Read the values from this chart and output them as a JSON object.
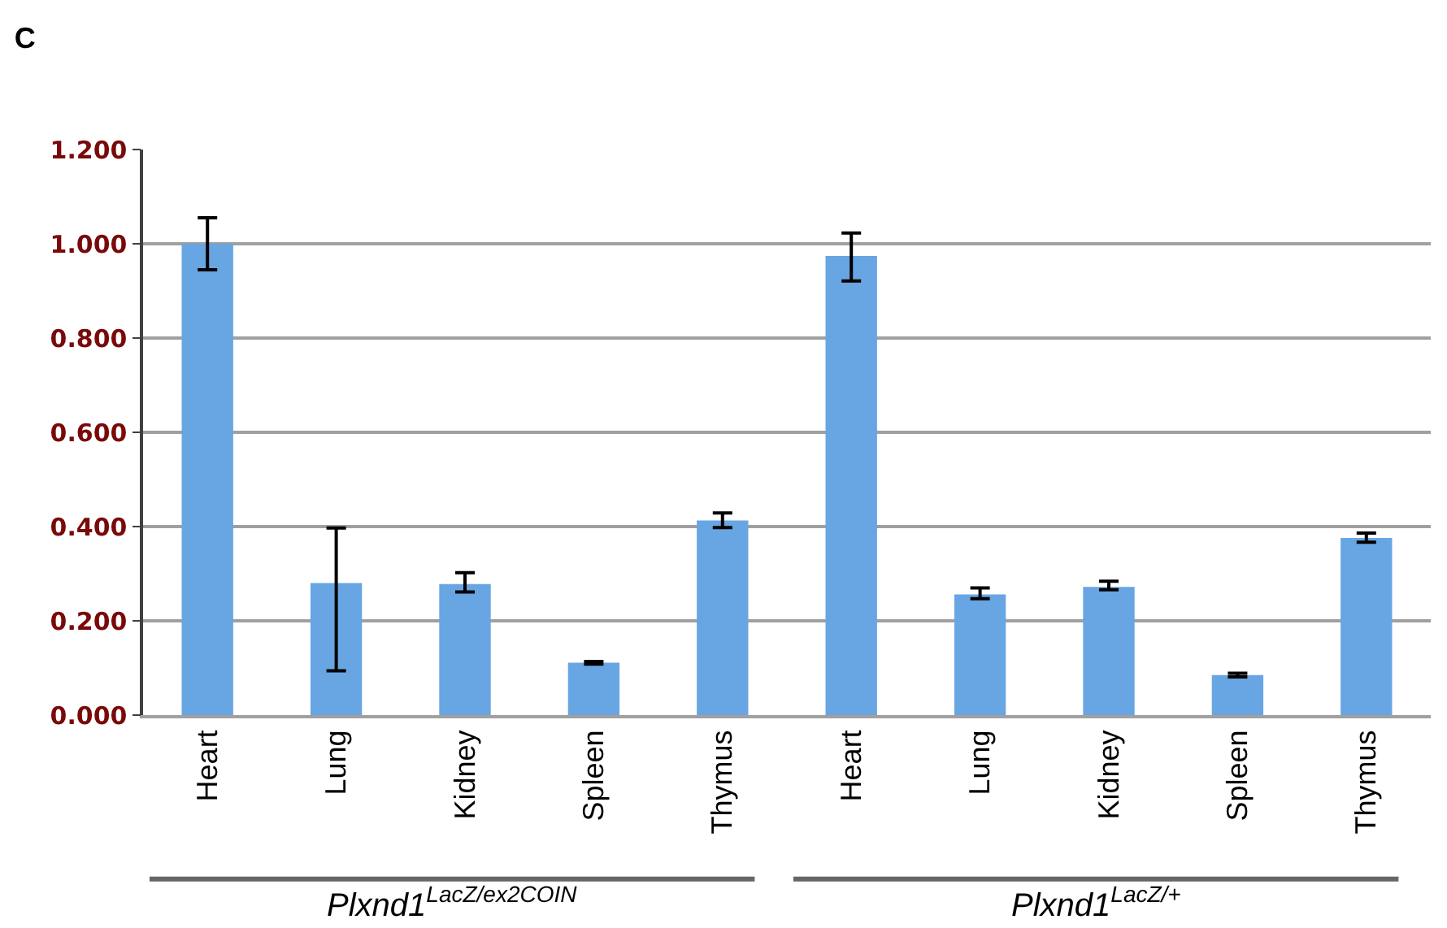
{
  "chart_data": {
    "type": "bar",
    "title": "C",
    "categories": [
      "Heart",
      "Lung",
      "Kidney",
      "Spleen",
      "Thymus",
      "Heart",
      "Lung",
      "Kidney",
      "Spleen",
      "Thymus"
    ],
    "values": [
      1.0,
      0.28,
      0.278,
      0.111,
      0.413,
      0.974,
      0.256,
      0.272,
      0.085,
      0.376
    ],
    "errors": [
      [
        0.945,
        1.055
      ],
      [
        0.094,
        0.397
      ],
      [
        0.261,
        0.302
      ],
      [
        0.108,
        0.114
      ],
      [
        0.398,
        0.429
      ],
      [
        0.921,
        1.023
      ],
      [
        0.247,
        0.27
      ],
      [
        0.266,
        0.284
      ],
      [
        0.081,
        0.089
      ],
      [
        0.367,
        0.386
      ]
    ],
    "color": "#68a5e3",
    "ylim": [
      0,
      1.2
    ],
    "yticks": [
      {
        "value": 0,
        "label": "0.000"
      },
      {
        "value": 0.2,
        "label": "0.200"
      },
      {
        "value": 0.4,
        "label": "0.400"
      },
      {
        "value": 0.6,
        "label": "0.600"
      },
      {
        "value": 0.8,
        "label": "0.800"
      },
      {
        "value": 1.0,
        "label": "1.000"
      },
      {
        "value": 1.2,
        "label": "1.200"
      }
    ],
    "grid": "y",
    "annotations": [
      "Plxnd1$^{LacZ/ex2COIN}$",
      "Plxnd1$^{LacZ/+}$"
    ]
  }
}
